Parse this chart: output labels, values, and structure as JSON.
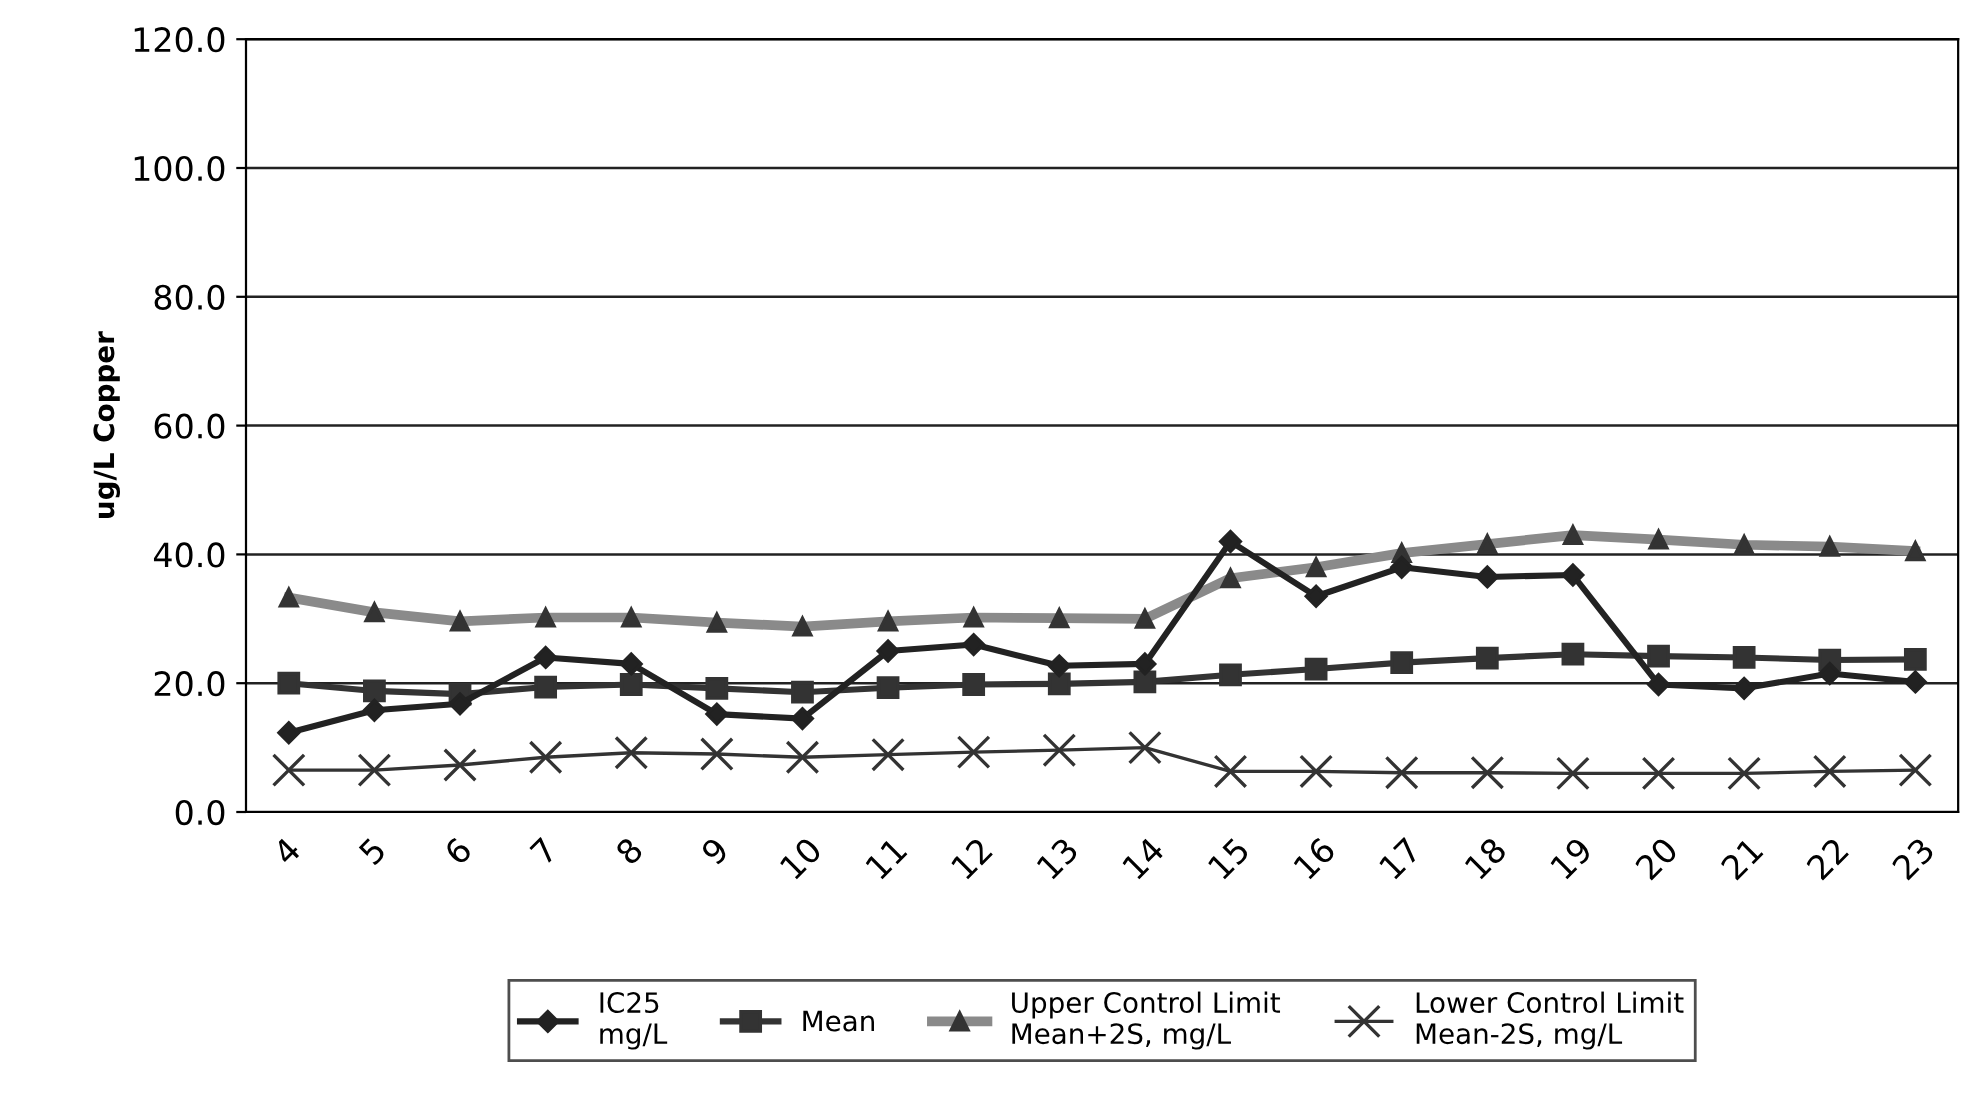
{
  "chart_data": {
    "type": "line",
    "ylabel": "ug/L Copper",
    "categories": [
      "4",
      "5",
      "6",
      "7",
      "8",
      "9",
      "10",
      "11",
      "12",
      "13",
      "14",
      "15",
      "16",
      "17",
      "18",
      "19",
      "20",
      "21",
      "22",
      "23"
    ],
    "series": [
      {
        "name": "IC25\nmg/L",
        "color": "#222222",
        "marker": "diamond",
        "values": [
          12.3,
          15.8,
          16.8,
          24.0,
          23.0,
          15.2,
          14.5,
          25.0,
          26.0,
          22.7,
          23.0,
          42.0,
          33.5,
          38.0,
          36.5,
          36.8,
          19.8,
          19.2,
          21.5,
          20.2
        ]
      },
      {
        "name": "Mean",
        "color": "#333333",
        "marker": "square",
        "values": [
          20.0,
          18.8,
          18.3,
          19.4,
          19.8,
          19.2,
          18.6,
          19.3,
          19.8,
          19.9,
          20.2,
          21.3,
          22.2,
          23.2,
          23.9,
          24.5,
          24.2,
          24.0,
          23.6,
          23.7
        ]
      },
      {
        "name": "Upper Control Limit\nMean+2S, mg/L",
        "color": "#8a8a8a",
        "marker": "triangle",
        "values": [
          33.3,
          31.0,
          29.6,
          30.2,
          30.2,
          29.4,
          28.8,
          29.6,
          30.2,
          30.1,
          30.0,
          36.3,
          38.0,
          40.2,
          41.6,
          43.0,
          42.3,
          41.5,
          41.2,
          40.5
        ]
      },
      {
        "name": "Lower Control Limit\nMean-2S, mg/L",
        "color": "#333333",
        "marker": "cross",
        "values": [
          6.5,
          6.5,
          7.3,
          8.5,
          9.2,
          9.0,
          8.5,
          8.9,
          9.3,
          9.6,
          10.0,
          6.3,
          6.3,
          6.1,
          6.1,
          6.0,
          6.0,
          6.0,
          6.3,
          6.5
        ]
      }
    ],
    "ylim": [
      0,
      120
    ],
    "yticks": [
      {
        "value": 0,
        "label": "0.0"
      },
      {
        "value": 20,
        "label": "20.0"
      },
      {
        "value": 40,
        "label": "40.0"
      },
      {
        "value": 60,
        "label": "60.0"
      },
      {
        "value": 80,
        "label": "80.0"
      },
      {
        "value": 100,
        "label": "100.0"
      },
      {
        "value": 120,
        "label": "120.0"
      }
    ],
    "grid": "y",
    "legend": "bottom"
  }
}
